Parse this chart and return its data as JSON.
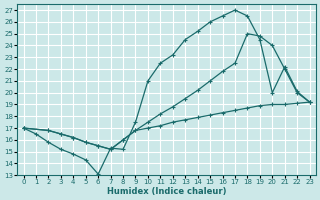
{
  "xlabel": "Humidex (Indice chaleur)",
  "bg_color": "#cce8e8",
  "grid_color": "#ffffff",
  "line_color": "#1a6b6b",
  "xlim": [
    -0.5,
    23.5
  ],
  "ylim": [
    13,
    27.5
  ],
  "xticks": [
    0,
    1,
    2,
    3,
    4,
    5,
    6,
    7,
    8,
    9,
    10,
    11,
    12,
    13,
    14,
    15,
    16,
    17,
    18,
    19,
    20,
    21,
    22,
    23
  ],
  "yticks": [
    13,
    14,
    15,
    16,
    17,
    18,
    19,
    20,
    21,
    22,
    23,
    24,
    25,
    26,
    27
  ],
  "curve1_x": [
    0,
    1,
    2,
    3,
    4,
    5,
    6,
    7,
    8,
    9,
    10,
    11,
    12,
    13,
    14,
    15,
    16,
    17,
    18,
    19,
    20,
    21,
    22,
    23
  ],
  "curve1_y": [
    17.0,
    16.5,
    15.8,
    15.2,
    14.8,
    14.3,
    13.1,
    15.3,
    15.2,
    17.5,
    21.0,
    22.5,
    23.2,
    24.5,
    25.2,
    26.0,
    26.5,
    27.0,
    26.5,
    24.5,
    20.0,
    22.2,
    20.1,
    19.2
  ],
  "curve2_x": [
    0,
    2,
    3,
    4,
    5,
    6,
    7,
    8,
    9,
    10,
    11,
    12,
    13,
    14,
    15,
    16,
    17,
    18,
    19,
    20,
    21,
    22,
    23
  ],
  "curve2_y": [
    17.0,
    16.8,
    16.5,
    16.2,
    15.8,
    15.5,
    15.2,
    16.0,
    16.8,
    17.5,
    18.2,
    18.8,
    19.5,
    20.2,
    21.0,
    21.8,
    22.5,
    25.0,
    24.8,
    24.0,
    22.0,
    20.0,
    19.2
  ],
  "curve3_x": [
    0,
    2,
    3,
    4,
    5,
    6,
    7,
    8,
    9,
    10,
    11,
    12,
    13,
    14,
    15,
    16,
    17,
    18,
    19,
    20,
    21,
    22,
    23
  ],
  "curve3_y": [
    17.0,
    16.8,
    16.5,
    16.2,
    15.8,
    15.5,
    15.2,
    16.0,
    16.8,
    17.0,
    17.2,
    17.5,
    17.7,
    17.9,
    18.1,
    18.3,
    18.5,
    18.7,
    18.9,
    19.0,
    19.0,
    19.1,
    19.2
  ]
}
